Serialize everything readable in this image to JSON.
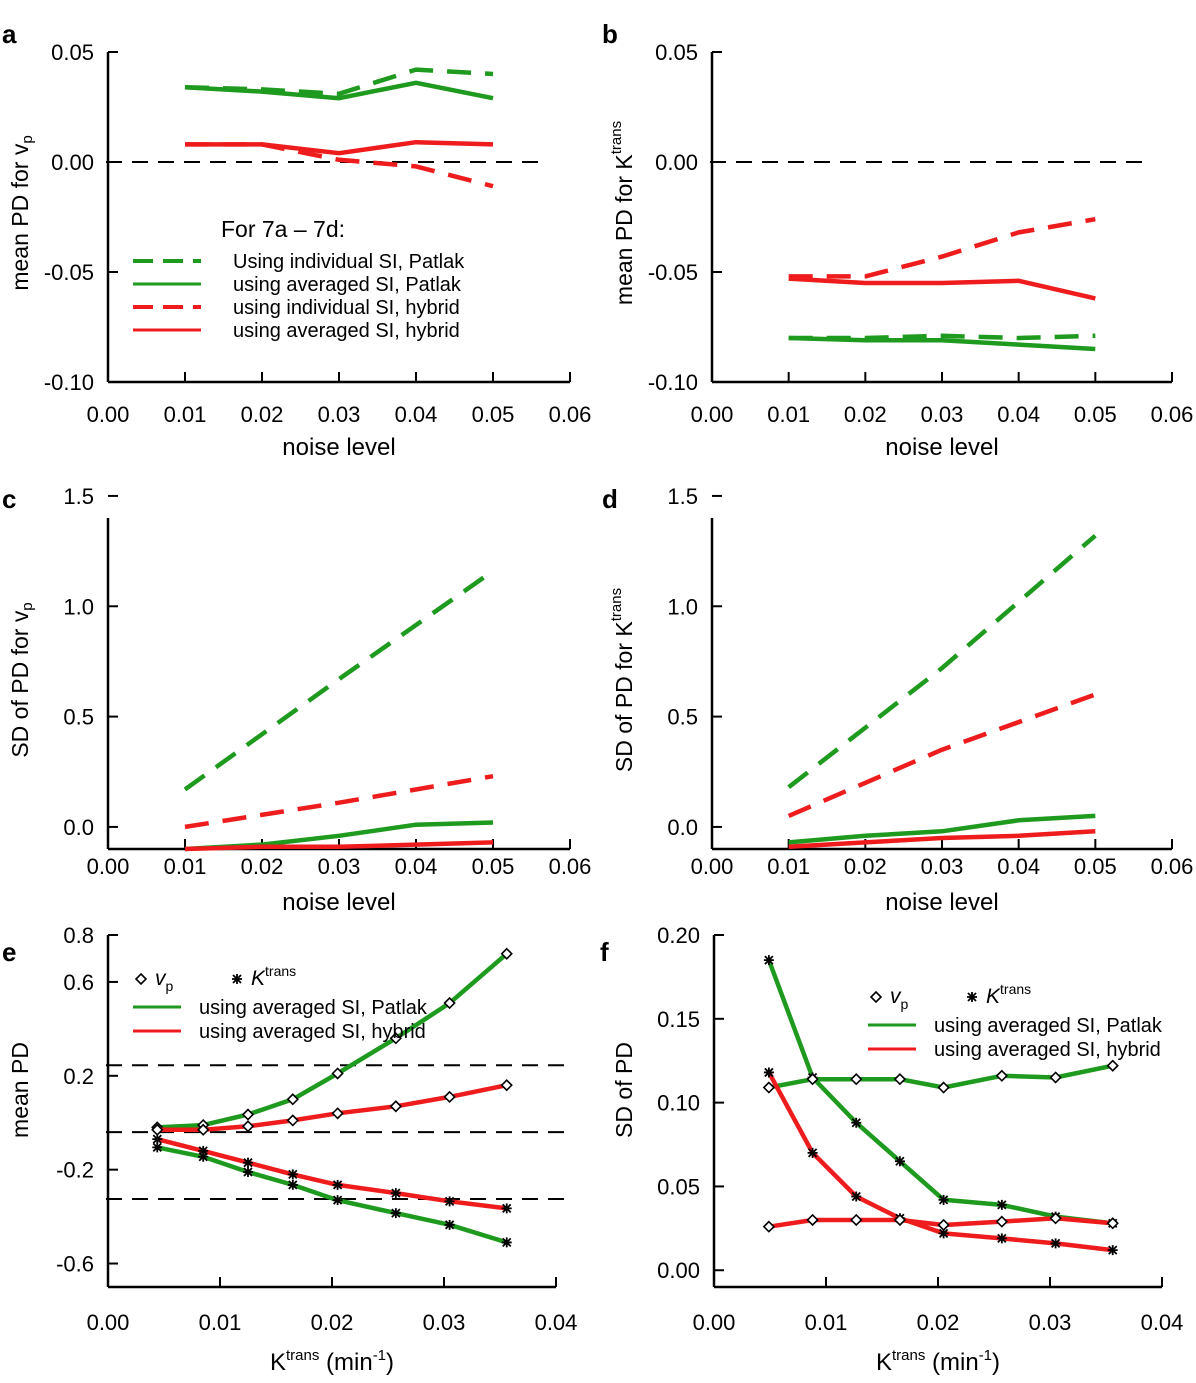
{
  "colors": {
    "green": "#1e9a1e",
    "red": "#ee1c1c",
    "axis": "#000000"
  },
  "chart_data": [
    {
      "panel": "a",
      "type": "line",
      "xlabel": "noise level",
      "ylabel": "mean PD for v",
      "ylabel_sub": "p",
      "xlim": [
        0,
        0.06
      ],
      "ylim": [
        -0.1,
        0.05
      ],
      "xticks": [
        "0.00",
        "0.01",
        "0.02",
        "0.03",
        "0.04",
        "0.05",
        "0.06"
      ],
      "yticks": [
        "-0.10",
        "-0.05",
        "0.00",
        "0.05"
      ],
      "ref_lines": [
        0
      ],
      "legend": {
        "title": "For 7a – 7d:",
        "entries": [
          {
            "label": "Using individual SI, Patlak",
            "color": "green",
            "dash": true
          },
          {
            "label": "using averaged SI, Patlak",
            "color": "green",
            "dash": false
          },
          {
            "label": "using individual SI, hybrid",
            "color": "red",
            "dash": true
          },
          {
            "label": "using averaged SI, hybrid",
            "color": "red",
            "dash": false
          }
        ]
      },
      "series": [
        {
          "color": "green",
          "dash": true,
          "x": [
            0.01,
            0.02,
            0.03,
            0.04,
            0.05
          ],
          "y": [
            0.034,
            0.033,
            0.031,
            0.042,
            0.04
          ]
        },
        {
          "color": "green",
          "dash": false,
          "x": [
            0.01,
            0.02,
            0.03,
            0.04,
            0.05
          ],
          "y": [
            0.034,
            0.032,
            0.029,
            0.036,
            0.029
          ]
        },
        {
          "color": "red",
          "dash": true,
          "x": [
            0.01,
            0.02,
            0.03,
            0.04,
            0.05
          ],
          "y": [
            0.008,
            0.008,
            0.001,
            -0.002,
            -0.011
          ]
        },
        {
          "color": "red",
          "dash": false,
          "x": [
            0.01,
            0.02,
            0.03,
            0.04,
            0.05
          ],
          "y": [
            0.008,
            0.008,
            0.004,
            0.009,
            0.008
          ]
        }
      ]
    },
    {
      "panel": "b",
      "type": "line",
      "xlabel": "noise level",
      "ylabel": "mean PD for K",
      "ylabel_sup": "trans",
      "xlim": [
        0,
        0.06
      ],
      "ylim": [
        -0.1,
        0.05
      ],
      "xticks": [
        "0.00",
        "0.01",
        "0.02",
        "0.03",
        "0.04",
        "0.05",
        "0.06"
      ],
      "yticks": [
        "-0.10",
        "-0.05",
        "0.00",
        "0.05"
      ],
      "ref_lines": [
        0
      ],
      "series": [
        {
          "color": "red",
          "dash": true,
          "x": [
            0.01,
            0.02,
            0.03,
            0.04,
            0.05
          ],
          "y": [
            -0.052,
            -0.052,
            -0.043,
            -0.032,
            -0.026
          ]
        },
        {
          "color": "red",
          "dash": false,
          "x": [
            0.01,
            0.02,
            0.03,
            0.04,
            0.05
          ],
          "y": [
            -0.053,
            -0.055,
            -0.055,
            -0.054,
            -0.062
          ]
        },
        {
          "color": "green",
          "dash": true,
          "x": [
            0.01,
            0.02,
            0.03,
            0.04,
            0.05
          ],
          "y": [
            -0.08,
            -0.08,
            -0.079,
            -0.08,
            -0.079
          ]
        },
        {
          "color": "green",
          "dash": false,
          "x": [
            0.01,
            0.02,
            0.03,
            0.04,
            0.05
          ],
          "y": [
            -0.08,
            -0.081,
            -0.081,
            -0.083,
            -0.085
          ]
        }
      ]
    },
    {
      "panel": "c",
      "type": "line",
      "xlabel": "noise level",
      "ylabel": "SD of  PD for v",
      "ylabel_sub": "p",
      "xlim": [
        0,
        0.06
      ],
      "ylim": [
        -0.1,
        1.4
      ],
      "ytick_values": [
        0,
        0.5,
        1.0,
        1.5
      ],
      "xticks": [
        "0.00",
        "0.01",
        "0.02",
        "0.03",
        "0.04",
        "0.05",
        "0.06"
      ],
      "yticks": [
        "0.0",
        "0.5",
        "1.0",
        "1.5"
      ],
      "series": [
        {
          "color": "green",
          "dash": true,
          "x": [
            0.01,
            0.03,
            0.05
          ],
          "y": [
            0.17,
            0.67,
            1.16
          ]
        },
        {
          "color": "red",
          "dash": true,
          "x": [
            0.01,
            0.03,
            0.05
          ],
          "y": [
            0.0,
            0.11,
            0.23
          ]
        },
        {
          "color": "green",
          "dash": false,
          "x": [
            0.01,
            0.02,
            0.03,
            0.04,
            0.05
          ],
          "y": [
            -0.1,
            -0.08,
            -0.04,
            0.01,
            0.02
          ]
        },
        {
          "color": "red",
          "dash": false,
          "x": [
            0.01,
            0.02,
            0.03,
            0.04,
            0.05
          ],
          "y": [
            -0.1,
            -0.09,
            -0.09,
            -0.08,
            -0.07
          ]
        }
      ]
    },
    {
      "panel": "d",
      "type": "line",
      "xlabel": "noise level",
      "ylabel": "SD of PD for K",
      "ylabel_sup": "trans",
      "xlim": [
        0,
        0.06
      ],
      "ylim": [
        -0.1,
        1.4
      ],
      "ytick_values": [
        0,
        0.5,
        1.0,
        1.5
      ],
      "xticks": [
        "0.00",
        "0.01",
        "0.02",
        "0.03",
        "0.04",
        "0.05",
        "0.06"
      ],
      "yticks": [
        "0.0",
        "0.5",
        "1.0",
        "1.5"
      ],
      "series": [
        {
          "color": "green",
          "dash": true,
          "x": [
            0.01,
            0.03,
            0.05
          ],
          "y": [
            0.18,
            0.72,
            1.32
          ]
        },
        {
          "color": "red",
          "dash": true,
          "x": [
            0.01,
            0.03,
            0.05
          ],
          "y": [
            0.05,
            0.35,
            0.6
          ]
        },
        {
          "color": "green",
          "dash": false,
          "x": [
            0.01,
            0.02,
            0.03,
            0.04,
            0.05
          ],
          "y": [
            -0.07,
            -0.04,
            -0.02,
            0.03,
            0.05
          ]
        },
        {
          "color": "red",
          "dash": false,
          "x": [
            0.01,
            0.02,
            0.03,
            0.04,
            0.05
          ],
          "y": [
            -0.09,
            -0.07,
            -0.05,
            -0.04,
            -0.02
          ]
        }
      ]
    },
    {
      "panel": "e",
      "type": "line",
      "xlabel": "K",
      "xlabel_sup": "trans",
      "xlabel_tail": " (min",
      "xlabel_exp": "-1",
      "xlabel_end": ")",
      "ylabel": "mean  PD",
      "xlim": [
        0,
        0.04
      ],
      "ylim": [
        -0.7,
        0.8
      ],
      "ytick_values": [
        -0.6,
        -0.2,
        0.2,
        0.6,
        0.8
      ],
      "xticks": [
        "0.00",
        "0.01",
        "0.02",
        "0.03",
        "0.04"
      ],
      "yticks": [
        "-0.6",
        "-0.2",
        "0.2",
        "0.6",
        "0.8"
      ],
      "ref_lines": [
        -0.325,
        -0.04,
        0.245
      ],
      "legend": {
        "markers": [
          {
            "symbol": "diamond",
            "label": "v",
            "sub": "p"
          },
          {
            "symbol": "asterisk",
            "label": "K",
            "sup": "trans"
          }
        ],
        "entries": [
          {
            "label": "using averaged SI, Patlak",
            "color": "green"
          },
          {
            "label": "using averaged SI, hybrid",
            "color": "red"
          }
        ]
      },
      "series": [
        {
          "color": "green",
          "marker": "diamond",
          "x": [
            0.0044,
            0.0085,
            0.0125,
            0.0165,
            0.0205,
            0.0257,
            0.0305,
            0.0356
          ],
          "y": [
            -0.02,
            -0.01,
            0.035,
            0.1,
            0.21,
            0.36,
            0.51,
            0.72
          ]
        },
        {
          "color": "red",
          "marker": "diamond",
          "x": [
            0.0044,
            0.0085,
            0.0125,
            0.0165,
            0.0205,
            0.0257,
            0.0305,
            0.0356
          ],
          "y": [
            -0.03,
            -0.03,
            -0.015,
            0.01,
            0.04,
            0.07,
            0.11,
            0.16
          ]
        },
        {
          "color": "red",
          "marker": "asterisk",
          "x": [
            0.0044,
            0.0085,
            0.0125,
            0.0165,
            0.0205,
            0.0257,
            0.0305,
            0.0356
          ],
          "y": [
            -0.07,
            -0.12,
            -0.17,
            -0.22,
            -0.265,
            -0.3,
            -0.335,
            -0.365
          ]
        },
        {
          "color": "green",
          "marker": "asterisk",
          "x": [
            0.0044,
            0.0085,
            0.0125,
            0.0165,
            0.0205,
            0.0257,
            0.0305,
            0.0356
          ],
          "y": [
            -0.105,
            -0.145,
            -0.21,
            -0.265,
            -0.33,
            -0.385,
            -0.435,
            -0.51
          ]
        }
      ]
    },
    {
      "panel": "f",
      "type": "line",
      "xlabel": "K",
      "xlabel_sup": "trans",
      "xlabel_tail": " (min",
      "xlabel_exp": "-1",
      "xlabel_end": ")",
      "ylabel": "SD of  PD",
      "xlim": [
        0,
        0.04
      ],
      "ylim": [
        -0.01,
        0.2
      ],
      "ytick_values": [
        0,
        0.05,
        0.1,
        0.15,
        0.2
      ],
      "xticks": [
        "0.00",
        "0.01",
        "0.02",
        "0.03",
        "0.04"
      ],
      "yticks": [
        "0.00",
        "0.05",
        "0.10",
        "0.15",
        "0.20"
      ],
      "legend": {
        "markers": [
          {
            "symbol": "diamond",
            "label": "v",
            "sub": "p"
          },
          {
            "symbol": "asterisk",
            "label": "K",
            "sup": "trans"
          }
        ],
        "entries": [
          {
            "label": "using averaged SI, Patlak",
            "color": "green"
          },
          {
            "label": "using averaged SI, hybrid",
            "color": "red"
          }
        ]
      },
      "series": [
        {
          "color": "green",
          "marker": "asterisk",
          "x": [
            0.0049,
            0.0088,
            0.0127,
            0.0166,
            0.0205,
            0.0257,
            0.0305,
            0.0356
          ],
          "y": [
            0.185,
            0.115,
            0.088,
            0.065,
            0.042,
            0.039,
            0.032,
            0.028
          ]
        },
        {
          "color": "green",
          "marker": "diamond",
          "x": [
            0.0049,
            0.0088,
            0.0127,
            0.0166,
            0.0205,
            0.0257,
            0.0305,
            0.0356
          ],
          "y": [
            0.109,
            0.114,
            0.114,
            0.114,
            0.109,
            0.116,
            0.115,
            0.122
          ]
        },
        {
          "color": "red",
          "marker": "asterisk",
          "x": [
            0.0049,
            0.0088,
            0.0127,
            0.0166,
            0.0205,
            0.0257,
            0.0305,
            0.0356
          ],
          "y": [
            0.118,
            0.07,
            0.044,
            0.031,
            0.022,
            0.019,
            0.016,
            0.012
          ]
        },
        {
          "color": "red",
          "marker": "diamond",
          "x": [
            0.0049,
            0.0088,
            0.0127,
            0.0166,
            0.0205,
            0.0257,
            0.0305,
            0.0356
          ],
          "y": [
            0.026,
            0.03,
            0.03,
            0.03,
            0.027,
            0.029,
            0.031,
            0.028
          ]
        }
      ]
    }
  ]
}
